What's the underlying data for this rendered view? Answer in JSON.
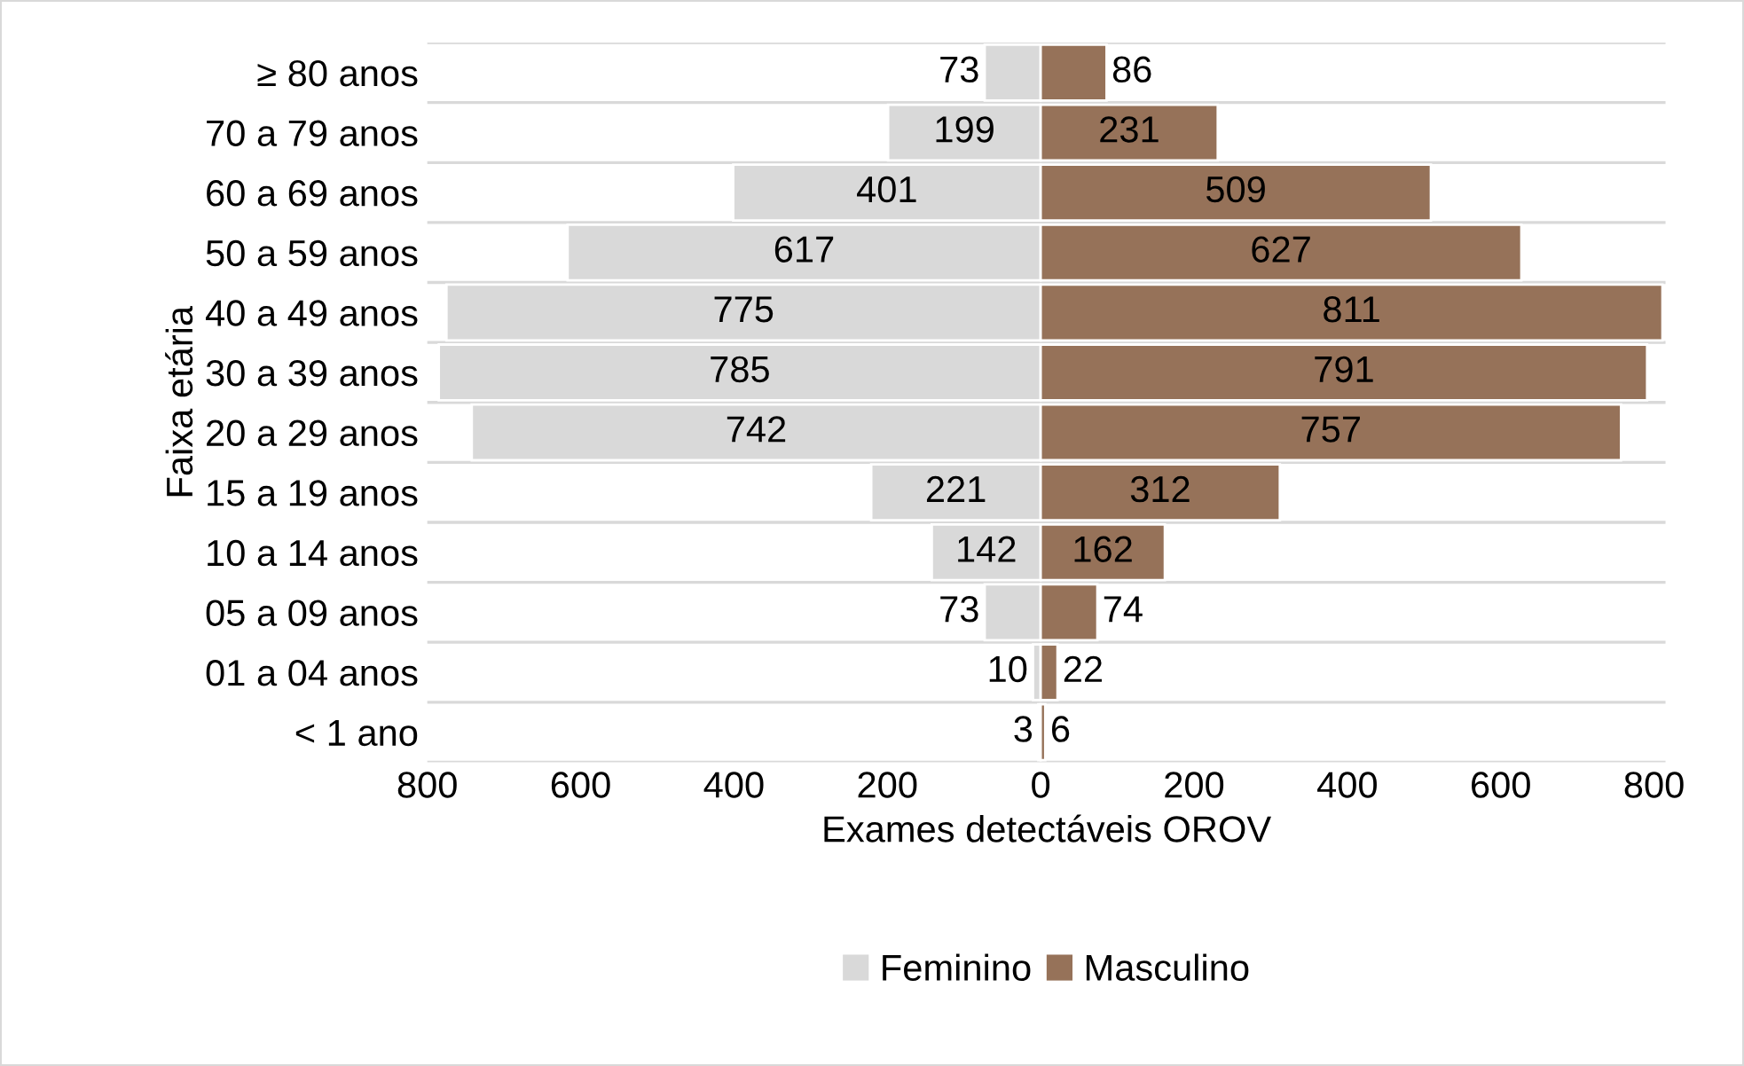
{
  "chart_data": {
    "type": "bar",
    "orientation": "horizontal",
    "ylabel": "Faixa etária",
    "xlabel": "Exames detectáveis OROV",
    "categories": [
      "≥ 80 anos",
      "70 a 79 anos",
      "60 a 69 anos",
      "50 a 59 anos",
      "40 a 49 anos",
      "30 a 39 anos",
      "20 a 29 anos",
      "15 a 19 anos",
      "10 a 14 anos",
      "05 a 09 anos",
      "01 a 04 anos",
      "< 1 ano"
    ],
    "series": [
      {
        "name": "Feminino",
        "color": "#d9d9d9",
        "base": [
          -73,
          -199,
          -401,
          -617,
          -775,
          -785,
          -742,
          -221,
          -142,
          -73,
          -10,
          -3
        ],
        "values": [
          73,
          199,
          401,
          617,
          775,
          785,
          742,
          221,
          142,
          73,
          10,
          3
        ],
        "value_labels": [
          "73",
          "199",
          "401",
          "617",
          "775",
          "785",
          "742",
          "221",
          "142",
          "73",
          "10",
          "3"
        ]
      },
      {
        "name": "Masculino",
        "color": "#967259",
        "values": [
          86,
          231,
          509,
          627,
          811,
          791,
          757,
          312,
          162,
          74,
          22,
          6
        ],
        "value_labels": [
          "86",
          "231",
          "509",
          "627",
          "811",
          "791",
          "757",
          "312",
          "162",
          "74",
          "22",
          "6"
        ]
      }
    ],
    "xlim": [
      -800,
      815
    ],
    "xticks": [
      {
        "value": -800,
        "label": "800"
      },
      {
        "value": -600,
        "label": "600"
      },
      {
        "value": -400,
        "label": "400"
      },
      {
        "value": -200,
        "label": "200"
      },
      0,
      200,
      400,
      600,
      800
    ],
    "grid": "y",
    "legend": "bottom"
  }
}
